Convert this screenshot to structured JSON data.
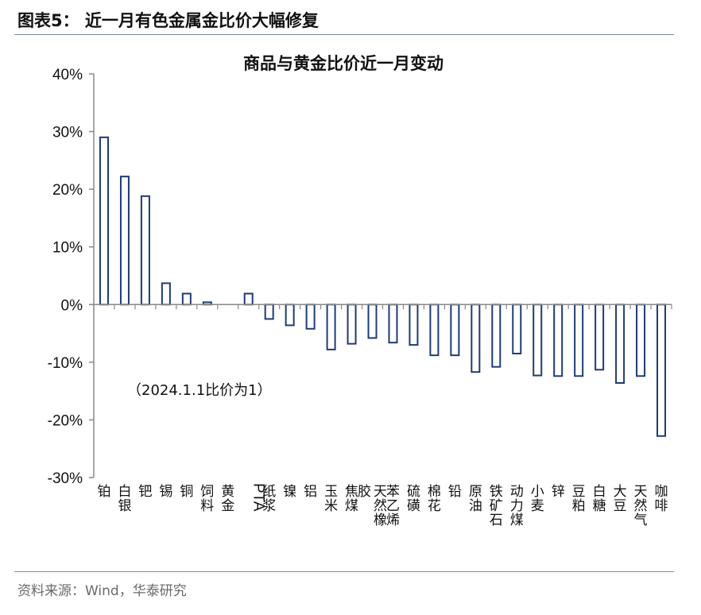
{
  "figure": {
    "title": "图表5：  近一月有色金属金比价大幅修复",
    "source": "资料来源：Wind，华泰研究"
  },
  "chart_data": {
    "type": "bar",
    "title": "商品与黄金比价近一月变动",
    "annotation": "（2024.1.1比价为1）",
    "ylabel": "",
    "xlabel": "",
    "ylim": [
      -30,
      40
    ],
    "yticks": [
      40,
      30,
      20,
      10,
      0,
      -10,
      -20,
      -30
    ],
    "ytick_labels": [
      "40%",
      "30%",
      "20%",
      "10%",
      "0%",
      "-10%",
      "-20%",
      "-30%"
    ],
    "value_unit": "%",
    "grid": false,
    "categories": [
      "铂",
      "白银",
      "钯",
      "锡",
      "铜",
      "饲料",
      "黄金",
      "PTA",
      "纸浆",
      "镍",
      "铝",
      "玉米",
      "焦煤",
      "天然橡胶",
      "苯乙烯",
      "硫磺",
      "棉花",
      "铅",
      "原油",
      "铁矿石",
      "动力煤",
      "小麦",
      "锌",
      "豆粕",
      "白糖",
      "大豆",
      "天然气",
      "咖啡"
    ],
    "values": [
      29,
      22.2,
      18.8,
      3.7,
      1.9,
      0.4,
      0,
      1.9,
      -2.5,
      -3.6,
      -4.2,
      -7.8,
      -6.8,
      -5.8,
      -6.6,
      -7,
      -8.8,
      -8.8,
      -11.7,
      -10.8,
      -8.5,
      -12.3,
      -12.4,
      -12.4,
      -11.3,
      -13.6,
      -12.4,
      -22.8
    ],
    "colors": {
      "bar": "#1f3b73",
      "axis": "#888888",
      "text": "#111111"
    }
  }
}
